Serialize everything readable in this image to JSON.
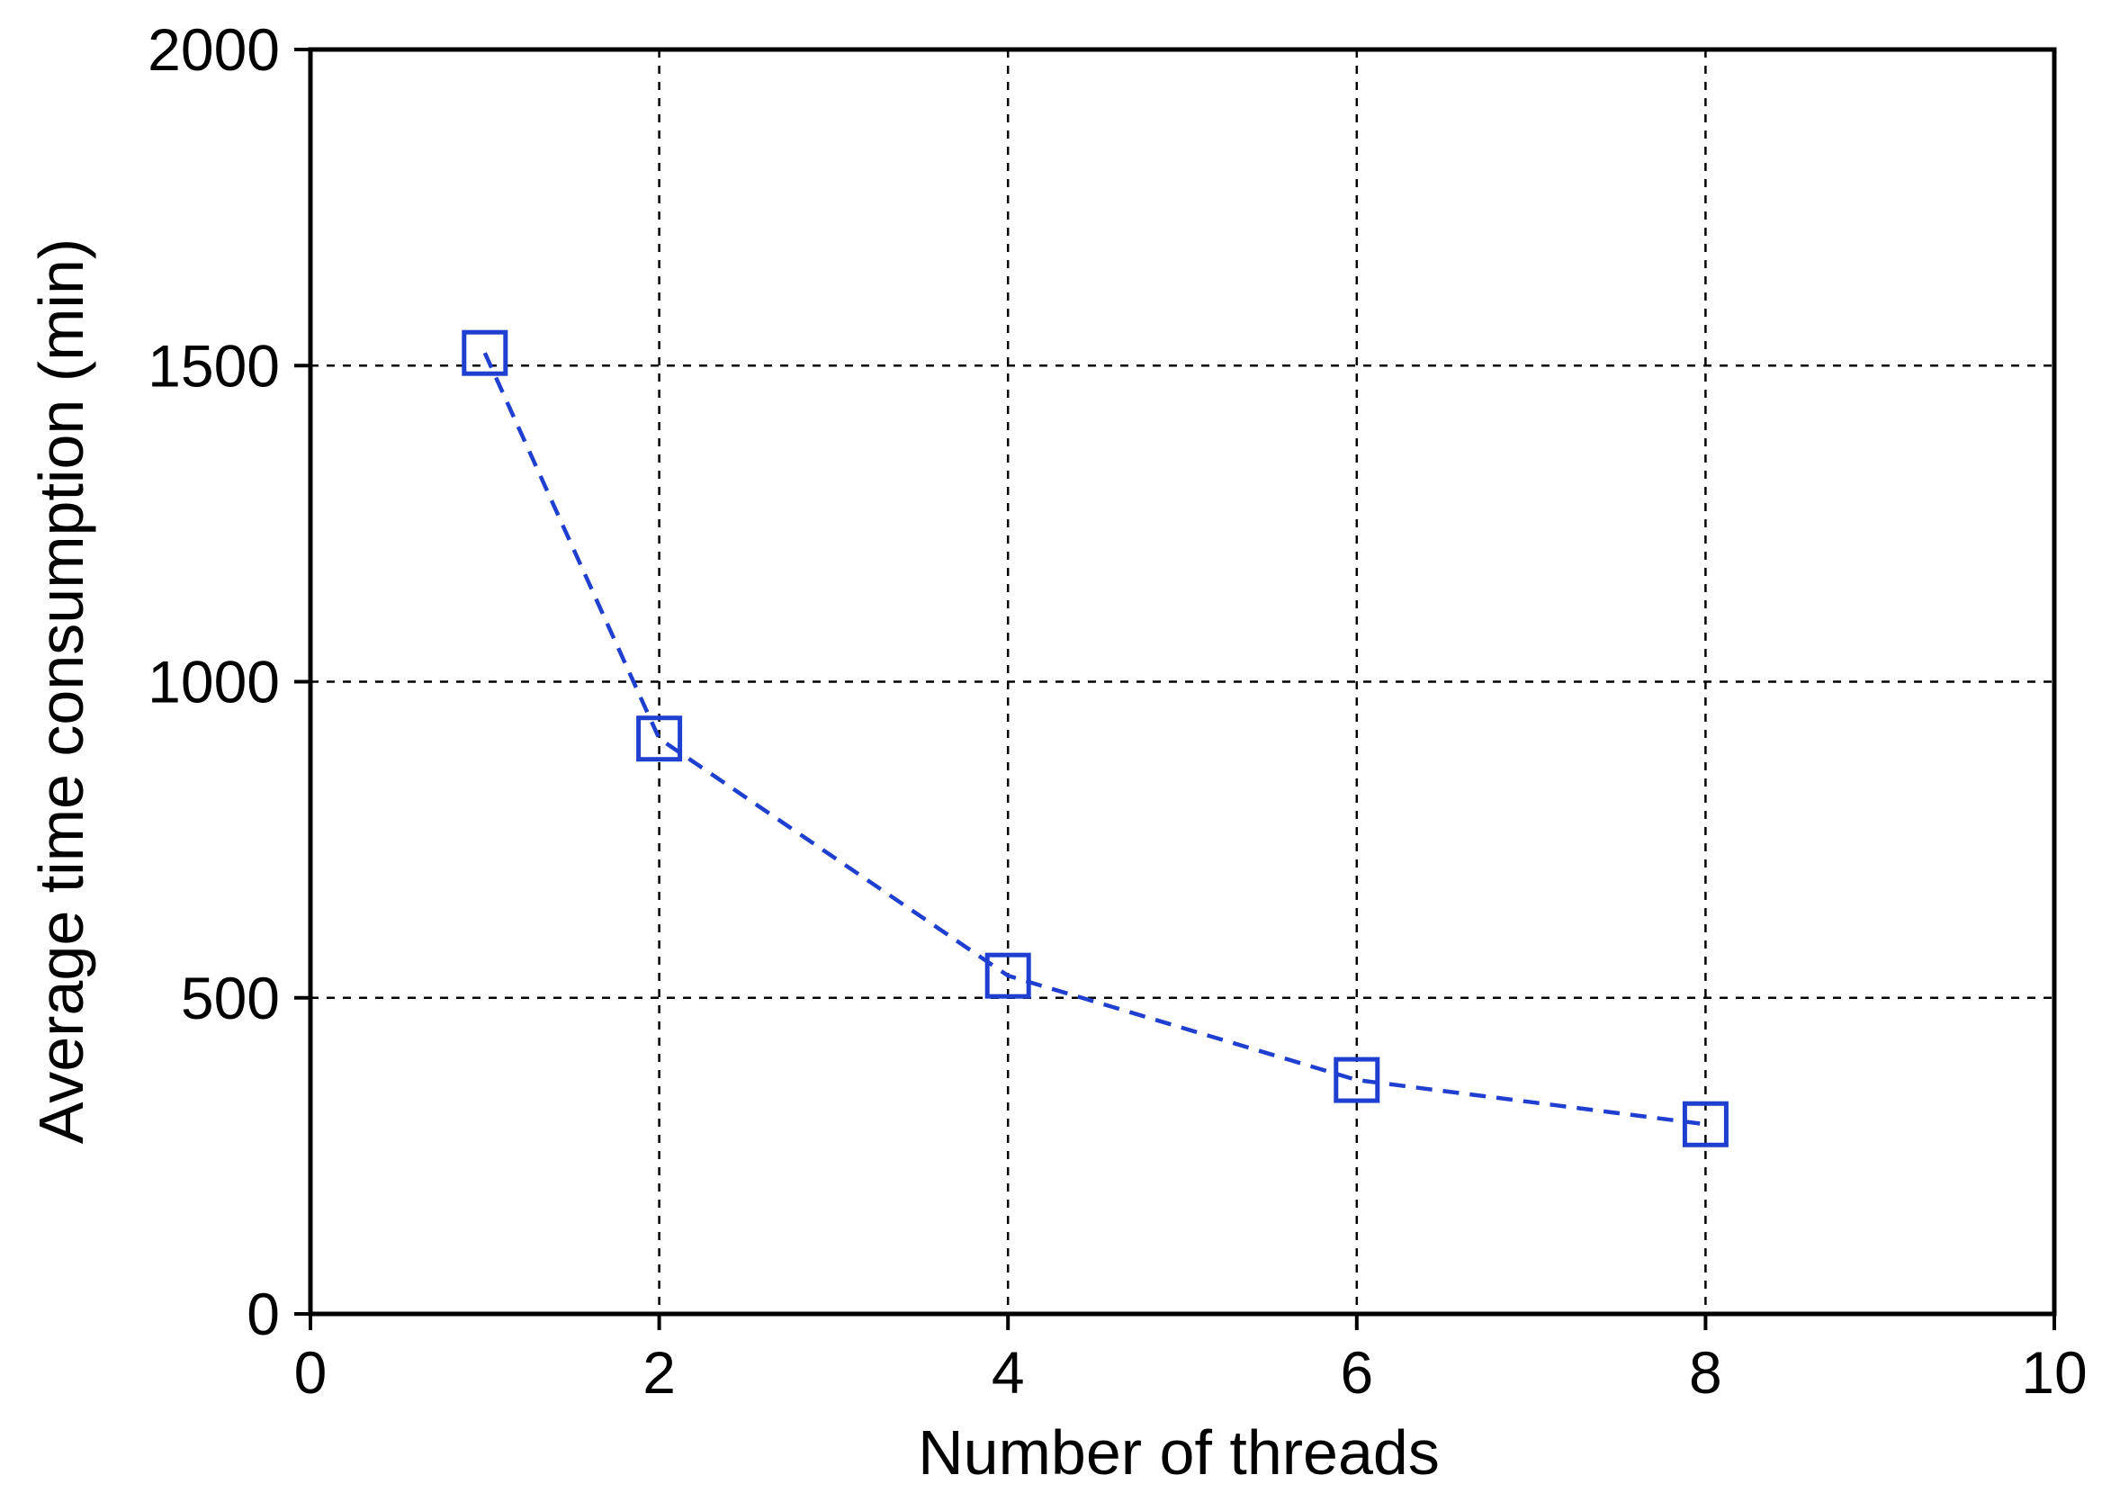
{
  "chart_data": {
    "type": "line",
    "title": "",
    "xlabel": "Number of threads",
    "ylabel": "Average time consumption (min)",
    "xlim": [
      0,
      10
    ],
    "ylim": [
      0,
      2000
    ],
    "xticks": [
      0,
      2,
      4,
      6,
      8,
      10
    ],
    "yticks": [
      0,
      500,
      1000,
      1500,
      2000
    ],
    "xtick_labels": [
      "0",
      "2",
      "4",
      "6",
      "8",
      "10"
    ],
    "ytick_labels": [
      "0",
      "500",
      "1000",
      "1500",
      "2000"
    ],
    "grid": true,
    "grid_style": "dashed",
    "legend": "none",
    "series": [
      {
        "x": [
          1,
          2,
          4,
          6,
          8
        ],
        "y": [
          1520,
          910,
          535,
          370,
          300
        ],
        "color": "#1f3fd0",
        "line_style": "dashed",
        "marker": "open-square"
      }
    ]
  }
}
